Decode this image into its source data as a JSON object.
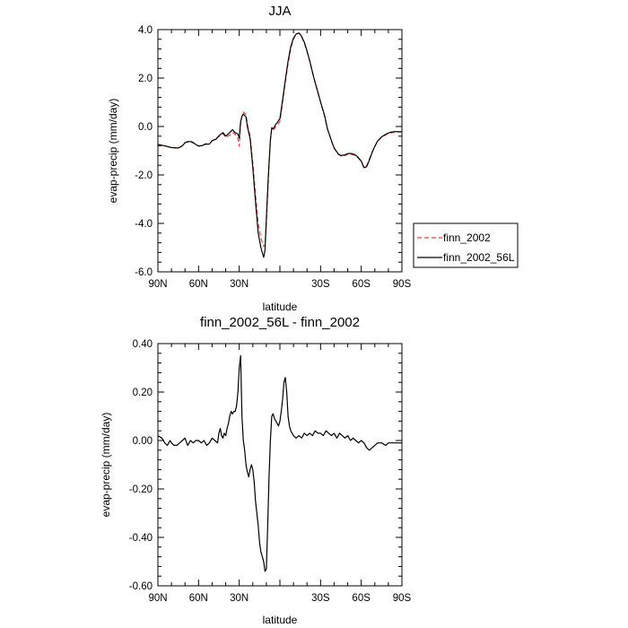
{
  "chart_data": [
    {
      "type": "line",
      "title": "JJA",
      "xlabel": "latitude",
      "ylabel": "evap-precip (mm/day)",
      "xlim": [
        90,
        -90
      ],
      "ylim": [
        -6.0,
        4.0
      ],
      "xticks": [
        90,
        60,
        30,
        0,
        -30,
        -60,
        -90
      ],
      "xtick_labels": [
        "90N",
        "60N",
        "30N",
        "",
        "30S",
        "60S",
        "90S"
      ],
      "yticks": [
        -6.0,
        -4.0,
        -2.0,
        0.0,
        2.0,
        4.0
      ],
      "ytick_labels": [
        "-6.0",
        "-4.0",
        "-2.0",
        "0.0",
        "2.0",
        "4.0"
      ],
      "legend": {
        "placement": "right-outside",
        "entries": [
          "finn_2002",
          "finn_2002_56L"
        ]
      },
      "series": [
        {
          "name": "finn_2002",
          "color": "#e8423a",
          "dash": "dashed",
          "x": [
            90,
            85,
            80,
            75,
            72,
            70,
            67,
            65,
            62,
            60,
            57,
            55,
            52,
            50,
            47,
            45,
            42,
            40,
            37,
            35,
            33,
            31,
            30,
            29,
            28,
            27,
            26,
            25,
            24,
            22,
            20,
            18,
            16,
            14,
            12,
            11,
            10,
            9,
            8,
            7,
            6,
            5,
            4,
            3,
            2,
            1,
            0,
            -2,
            -4,
            -6,
            -8,
            -10,
            -12,
            -14,
            -15,
            -16,
            -18,
            -20,
            -22,
            -25,
            -28,
            -30,
            -33,
            -35,
            -38,
            -40,
            -43,
            -45,
            -48,
            -50,
            -52,
            -55,
            -57,
            -60,
            -62,
            -64,
            -66,
            -68,
            -70,
            -72,
            -75,
            -78,
            -80,
            -82,
            -85,
            -88,
            -90
          ],
          "y": [
            -0.76,
            -0.8,
            -0.86,
            -0.9,
            -0.78,
            -0.66,
            -0.6,
            -0.62,
            -0.74,
            -0.8,
            -0.78,
            -0.74,
            -0.72,
            -0.6,
            -0.5,
            -0.42,
            -0.3,
            -0.45,
            -0.36,
            -0.24,
            -0.32,
            -0.5,
            -0.82,
            0.1,
            0.4,
            0.6,
            0.55,
            0.5,
            0.1,
            -0.4,
            -1.5,
            -2.8,
            -4.0,
            -4.6,
            -4.95,
            -4.9,
            -4.0,
            -2.8,
            -1.6,
            -0.6,
            -0.1,
            -0.15,
            -0.08,
            0.0,
            0.05,
            0.12,
            0.2,
            1.0,
            1.8,
            2.6,
            3.2,
            3.6,
            3.8,
            3.85,
            3.8,
            3.7,
            3.45,
            3.1,
            2.7,
            2.0,
            1.4,
            1.0,
            0.4,
            -0.1,
            -0.6,
            -0.9,
            -1.15,
            -1.22,
            -1.2,
            -1.15,
            -1.14,
            -1.18,
            -1.25,
            -1.45,
            -1.68,
            -1.62,
            -1.35,
            -1.05,
            -0.82,
            -0.62,
            -0.45,
            -0.35,
            -0.3,
            -0.26,
            -0.24,
            -0.22,
            -0.22
          ]
        },
        {
          "name": "finn_2002_56L",
          "color": "#000000",
          "dash": "solid",
          "x": [
            90,
            85,
            80,
            75,
            72,
            70,
            67,
            65,
            62,
            60,
            57,
            55,
            52,
            50,
            47,
            45,
            42,
            40,
            37,
            35,
            33,
            31,
            30,
            29,
            28,
            27,
            26,
            25,
            24,
            22,
            20,
            18,
            16,
            14,
            12,
            11,
            10,
            9,
            8,
            7,
            6,
            5,
            4,
            3,
            2,
            1,
            0,
            -2,
            -4,
            -6,
            -8,
            -10,
            -12,
            -14,
            -15,
            -16,
            -18,
            -20,
            -22,
            -25,
            -28,
            -30,
            -33,
            -35,
            -38,
            -40,
            -43,
            -45,
            -48,
            -50,
            -52,
            -55,
            -57,
            -60,
            -62,
            -64,
            -66,
            -68,
            -70,
            -72,
            -75,
            -78,
            -80,
            -82,
            -85,
            -88,
            -90
          ],
          "y": [
            -0.74,
            -0.8,
            -0.87,
            -0.89,
            -0.8,
            -0.67,
            -0.62,
            -0.64,
            -0.74,
            -0.81,
            -0.78,
            -0.72,
            -0.73,
            -0.58,
            -0.52,
            -0.38,
            -0.25,
            -0.4,
            -0.25,
            -0.13,
            -0.25,
            -0.31,
            -0.48,
            0.2,
            0.42,
            0.52,
            0.45,
            0.4,
            0.0,
            -0.5,
            -1.7,
            -3.1,
            -4.4,
            -5.0,
            -5.4,
            -5.1,
            -3.8,
            -2.6,
            -1.5,
            -0.55,
            -0.05,
            -0.1,
            0.0,
            0.1,
            0.15,
            0.25,
            0.32,
            1.1,
            1.9,
            2.7,
            3.3,
            3.65,
            3.82,
            3.86,
            3.8,
            3.72,
            3.48,
            3.12,
            2.72,
            2.02,
            1.42,
            1.02,
            0.44,
            -0.08,
            -0.58,
            -0.88,
            -1.13,
            -1.2,
            -1.17,
            -1.12,
            -1.11,
            -1.15,
            -1.23,
            -1.43,
            -1.7,
            -1.66,
            -1.39,
            -1.07,
            -0.82,
            -0.6,
            -0.43,
            -0.32,
            -0.27,
            -0.23,
            -0.21,
            -0.22,
            -0.22
          ]
        }
      ]
    },
    {
      "type": "line",
      "title": "finn_2002_56L - finn_2002",
      "xlabel": "latitude",
      "ylabel": "evap-precip (mm/day)",
      "xlim": [
        90,
        -90
      ],
      "ylim": [
        -0.6,
        0.4
      ],
      "xticks": [
        90,
        60,
        30,
        0,
        -30,
        -60,
        -90
      ],
      "xtick_labels": [
        "90N",
        "60N",
        "30N",
        "",
        "30S",
        "60S",
        "90S"
      ],
      "yticks": [
        -0.6,
        -0.4,
        -0.2,
        0.0,
        0.2,
        0.4
      ],
      "ytick_labels": [
        "-0.60",
        "-0.40",
        "-0.20",
        "0.00",
        "0.20",
        "0.40"
      ],
      "series": [
        {
          "color": "#000000",
          "dash": "solid",
          "x": [
            90,
            87,
            85,
            83,
            81,
            80,
            78,
            76,
            74,
            72,
            70,
            68,
            66,
            64,
            62,
            60,
            58,
            56,
            54,
            52,
            50,
            48,
            46,
            45,
            44,
            43,
            42,
            41,
            40,
            39,
            38,
            37,
            36,
            35,
            34,
            33,
            32,
            31,
            30,
            29,
            28,
            27,
            26,
            25,
            24,
            23,
            22,
            21,
            20,
            19,
            18,
            17,
            16,
            15,
            14,
            13,
            12,
            11,
            10,
            9,
            8,
            7,
            6,
            5,
            4,
            3,
            2,
            1,
            0,
            -1,
            -2,
            -3,
            -4,
            -5,
            -6,
            -7,
            -8,
            -9,
            -10,
            -12,
            -14,
            -16,
            -18,
            -20,
            -22,
            -24,
            -26,
            -28,
            -30,
            -32,
            -34,
            -36,
            -38,
            -40,
            -42,
            -44,
            -46,
            -48,
            -50,
            -52,
            -54,
            -56,
            -58,
            -60,
            -62,
            -64,
            -66,
            -68,
            -70,
            -72,
            -75,
            -78,
            -80,
            -83,
            -85,
            -88,
            -90
          ],
          "y": [
            0.02,
            0.01,
            -0.01,
            -0.02,
            0.0,
            -0.01,
            -0.02,
            -0.02,
            -0.01,
            0.0,
            0.01,
            -0.02,
            0.0,
            -0.01,
            0.0,
            0.0,
            -0.01,
            0.0,
            -0.02,
            -0.01,
            0.01,
            0.0,
            -0.01,
            0.03,
            0.05,
            0.02,
            0.01,
            0.03,
            0.02,
            0.05,
            0.07,
            0.1,
            0.12,
            0.11,
            0.12,
            0.12,
            0.14,
            0.2,
            0.3,
            0.35,
            0.1,
            0.0,
            -0.04,
            -0.1,
            -0.13,
            -0.15,
            -0.12,
            -0.1,
            -0.12,
            -0.17,
            -0.25,
            -0.3,
            -0.35,
            -0.42,
            -0.46,
            -0.48,
            -0.5,
            -0.54,
            -0.53,
            -0.35,
            -0.15,
            0.0,
            0.1,
            0.11,
            0.09,
            0.08,
            0.07,
            0.06,
            0.08,
            0.12,
            0.17,
            0.24,
            0.26,
            0.2,
            0.1,
            0.06,
            0.04,
            0.03,
            0.02,
            0.01,
            0.02,
            0.01,
            0.03,
            0.02,
            0.03,
            0.02,
            0.04,
            0.03,
            0.03,
            0.02,
            0.04,
            0.03,
            0.02,
            0.03,
            0.01,
            0.03,
            0.02,
            0.01,
            0.02,
            0.0,
            0.01,
            0.0,
            -0.01,
            0.0,
            -0.01,
            -0.03,
            -0.04,
            -0.03,
            -0.02,
            -0.01,
            -0.01,
            -0.02,
            -0.01,
            -0.01,
            -0.01,
            -0.01,
            -0.01
          ]
        }
      ]
    }
  ]
}
